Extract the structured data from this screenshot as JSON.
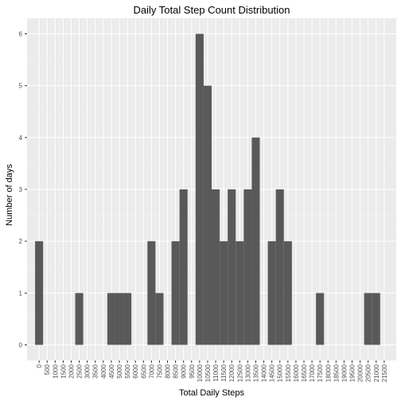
{
  "chart_data": {
    "type": "bar",
    "title": "Daily Total Step Count Distribution",
    "xlabel": "Total Daily Steps",
    "ylabel": "Number of days",
    "bin_width": 500,
    "bins": [
      {
        "x": 0,
        "count": 2
      },
      {
        "x": 2500,
        "count": 1
      },
      {
        "x": 4500,
        "count": 1
      },
      {
        "x": 5000,
        "count": 1
      },
      {
        "x": 5500,
        "count": 1
      },
      {
        "x": 7000,
        "count": 2
      },
      {
        "x": 7500,
        "count": 1
      },
      {
        "x": 8500,
        "count": 2
      },
      {
        "x": 9000,
        "count": 3
      },
      {
        "x": 10000,
        "count": 6
      },
      {
        "x": 10500,
        "count": 5
      },
      {
        "x": 11000,
        "count": 3
      },
      {
        "x": 11500,
        "count": 2
      },
      {
        "x": 12000,
        "count": 3
      },
      {
        "x": 12500,
        "count": 2
      },
      {
        "x": 13000,
        "count": 3
      },
      {
        "x": 13500,
        "count": 4
      },
      {
        "x": 14500,
        "count": 2
      },
      {
        "x": 15000,
        "count": 3
      },
      {
        "x": 15500,
        "count": 2
      },
      {
        "x": 17500,
        "count": 1
      },
      {
        "x": 20500,
        "count": 1
      },
      {
        "x": 21000,
        "count": 1
      }
    ],
    "x_ticks": [
      0,
      500,
      1000,
      1500,
      2000,
      2500,
      3000,
      3500,
      4000,
      4500,
      5000,
      5500,
      6000,
      6500,
      7000,
      7500,
      8000,
      8500,
      9000,
      9500,
      10000,
      10500,
      11000,
      11500,
      12000,
      12500,
      13000,
      13500,
      14000,
      14500,
      15000,
      15500,
      16000,
      16500,
      17000,
      17500,
      18000,
      18500,
      19000,
      19500,
      20000,
      20500,
      21000,
      21500
    ],
    "y_ticks": [
      0,
      1,
      2,
      3,
      4,
      5,
      6
    ],
    "xlim": [
      -750,
      22250
    ],
    "ylim": [
      -0.3,
      6.3
    ],
    "colors": {
      "bar": "#595959",
      "panel": "#ebebeb",
      "grid_major": "#ffffff",
      "grid_minor": "#f5f5f5"
    }
  }
}
